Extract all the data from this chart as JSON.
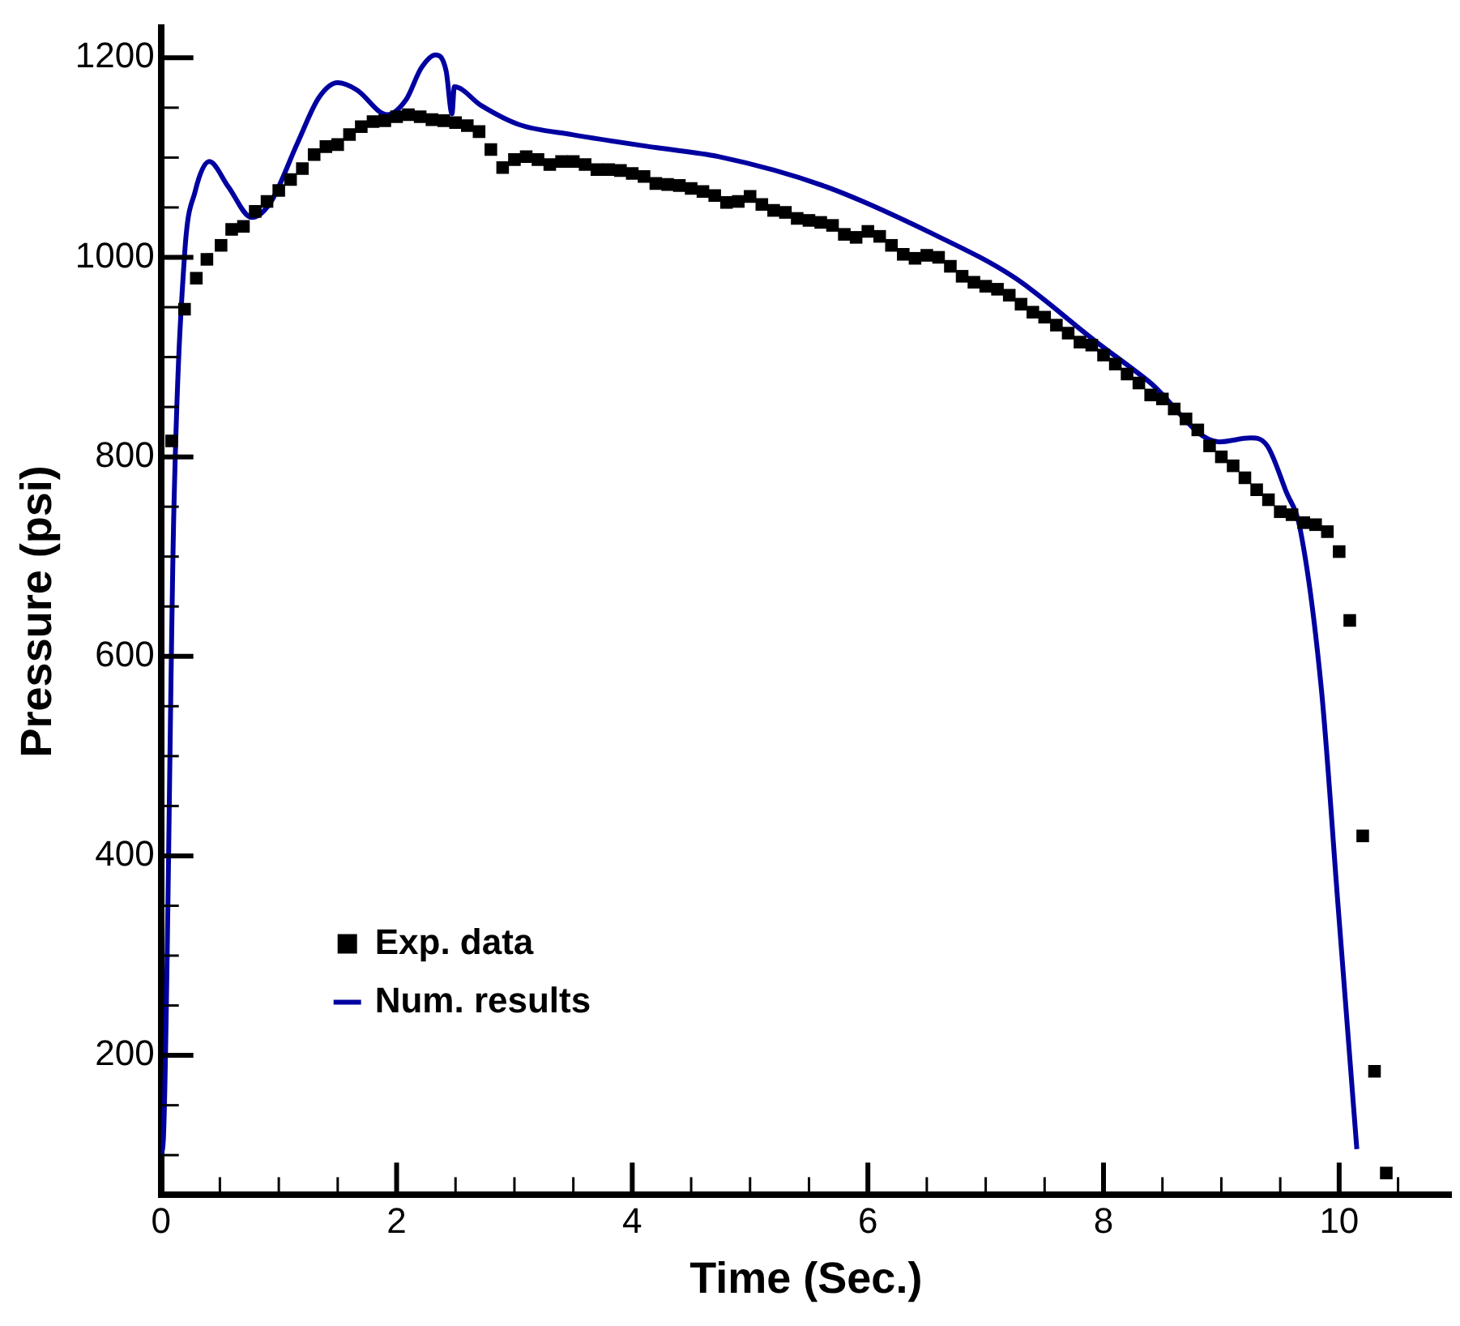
{
  "chart_data": {
    "type": "line",
    "xlabel": "Time (Sec.)",
    "ylabel": "Pressure (psi)",
    "legend": "bottom left",
    "grid": false,
    "xlim": [
      0,
      10.95
    ],
    "ylim": [
      60,
      1230
    ],
    "xticks": [
      0,
      {
        "value": 0.5,
        "label": null
      },
      2,
      {
        "value": 1,
        "label": null
      },
      {
        "value": 1.5,
        "label": null
      },
      {
        "value": 2.5,
        "label": null
      },
      {
        "value": 3,
        "label": null
      },
      {
        "value": 3.5,
        "label": null
      },
      4,
      {
        "value": 4.5,
        "label": null
      },
      {
        "value": 5,
        "label": null
      },
      {
        "value": 5.5,
        "label": null
      },
      6,
      {
        "value": 6.5,
        "label": null
      },
      {
        "value": 7,
        "label": null
      },
      {
        "value": 7.5,
        "label": null
      },
      8,
      {
        "value": 8.5,
        "label": null
      },
      {
        "value": 9,
        "label": null
      },
      {
        "value": 9.5,
        "label": null
      },
      10,
      {
        "value": 10.5,
        "label": null
      }
    ],
    "yticks": [
      {
        "value": 100,
        "label": null
      },
      {
        "value": 150,
        "label": null
      },
      200,
      {
        "value": 250,
        "label": null
      },
      {
        "value": 300,
        "label": null
      },
      {
        "value": 350,
        "label": null
      },
      400,
      {
        "value": 450,
        "label": null
      },
      {
        "value": 500,
        "label": null
      },
      {
        "value": 550,
        "label": null
      },
      600,
      {
        "value": 650,
        "label": null
      },
      {
        "value": 700,
        "label": null
      },
      {
        "value": 750,
        "label": null
      },
      800,
      {
        "value": 850,
        "label": null
      },
      {
        "value": 900,
        "label": null
      },
      {
        "value": 950,
        "label": null
      },
      1000,
      {
        "value": 1050,
        "label": null
      },
      {
        "value": 1100,
        "label": null
      },
      {
        "value": 1150,
        "label": null
      },
      1200
    ],
    "series": [
      {
        "name": "Exp. data",
        "type": "scatter",
        "marker": "square",
        "color": "#000000",
        "x": [
          0.09,
          0.2,
          0.3,
          0.39,
          0.51,
          0.6,
          0.7,
          0.8,
          0.9,
          1.0,
          1.1,
          1.2,
          1.3,
          1.4,
          1.5,
          1.6,
          1.7,
          1.8,
          1.9,
          2.0,
          2.1,
          2.2,
          2.3,
          2.4,
          2.5,
          2.6,
          2.7,
          2.8,
          2.9,
          3.0,
          3.1,
          3.2,
          3.3,
          3.4,
          3.5,
          3.6,
          3.7,
          3.8,
          3.9,
          4.0,
          4.1,
          4.2,
          4.3,
          4.4,
          4.5,
          4.6,
          4.7,
          4.8,
          4.9,
          5.0,
          5.1,
          5.2,
          5.3,
          5.4,
          5.5,
          5.6,
          5.7,
          5.8,
          5.9,
          6.0,
          6.1,
          6.2,
          6.3,
          6.4,
          6.5,
          6.6,
          6.7,
          6.8,
          6.9,
          7.0,
          7.1,
          7.2,
          7.3,
          7.4,
          7.5,
          7.6,
          7.7,
          7.8,
          7.9,
          8.0,
          8.1,
          8.2,
          8.3,
          8.4,
          8.5,
          8.6,
          8.7,
          8.8,
          8.9,
          9.0,
          9.1,
          9.2,
          9.3,
          9.4,
          9.5,
          9.6,
          9.7,
          9.8,
          9.9,
          10.0,
          10.09,
          10.2,
          10.3,
          10.4
        ],
        "values": [
          816,
          948,
          979,
          998,
          1012,
          1028,
          1031,
          1046,
          1056,
          1067,
          1078,
          1089,
          1103,
          1111,
          1113,
          1123,
          1131,
          1136,
          1137,
          1141,
          1143,
          1141,
          1138,
          1137,
          1135,
          1132,
          1126,
          1108,
          1090,
          1098,
          1101,
          1098,
          1093,
          1096,
          1096,
          1093,
          1088,
          1088,
          1087,
          1084,
          1081,
          1074,
          1073,
          1072,
          1069,
          1066,
          1062,
          1055,
          1056,
          1061,
          1053,
          1047,
          1045,
          1039,
          1037,
          1035,
          1032,
          1023,
          1020,
          1026,
          1021,
          1012,
          1003,
          999,
          1002,
          1000,
          991,
          981,
          975,
          971,
          968,
          962,
          953,
          945,
          940,
          932,
          924,
          915,
          912,
          902,
          893,
          883,
          874,
          862,
          858,
          848,
          838,
          827,
          811,
          800,
          791,
          779,
          767,
          757,
          745,
          742,
          734,
          732,
          725,
          705,
          636,
          420,
          184,
          82
        ]
      },
      {
        "name": "Num. results",
        "type": "line",
        "marker": "none",
        "color": "#0000a0",
        "x": [
          0,
          0.02,
          0.11,
          0.2,
          0.29,
          0.41,
          0.57,
          0.77,
          0.93,
          1.16,
          1.34,
          1.5,
          1.66,
          1.92,
          2.08,
          2.21,
          2.33,
          2.42,
          2.47,
          2.49,
          2.72,
          3.04,
          3.49,
          4.2,
          4.73,
          5.64,
          6.56,
          7.24,
          7.93,
          8.39,
          8.98,
          9.25,
          9.39,
          9.55,
          9.67,
          9.85,
          9.99,
          10.15
        ],
        "values": [
          100,
          115,
          749,
          1002,
          1066,
          1096,
          1071,
          1040,
          1055,
          1115,
          1160,
          1175,
          1168,
          1143,
          1158,
          1190,
          1203,
          1187,
          1144,
          1171,
          1152,
          1133,
          1123,
          1110,
          1101,
          1071,
          1023,
          980,
          916,
          875,
          815,
          819,
          811,
          765,
          727,
          566,
          351,
          106
        ]
      }
    ]
  }
}
